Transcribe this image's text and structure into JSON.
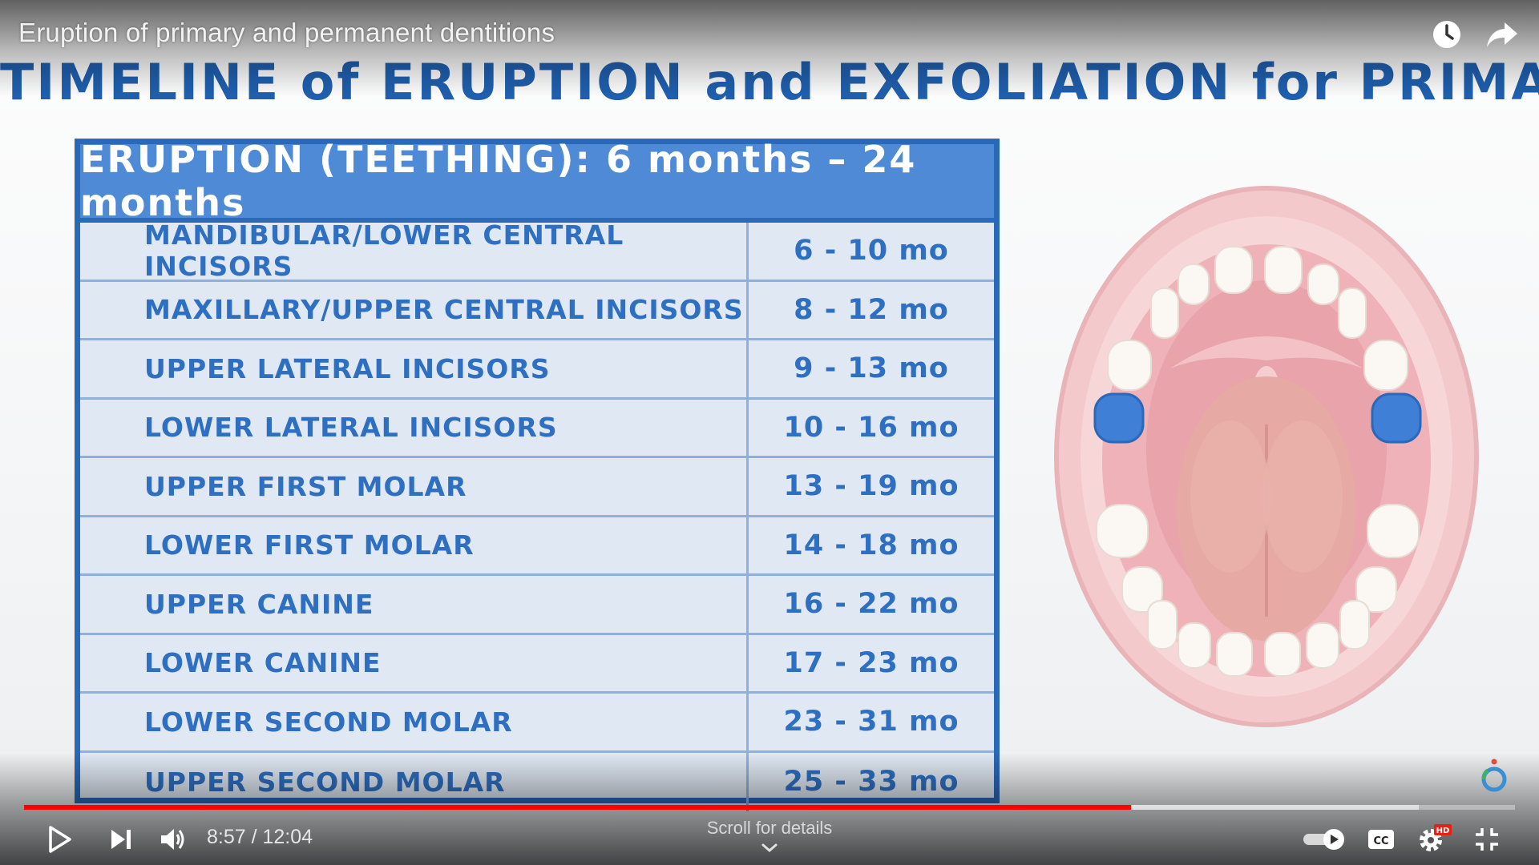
{
  "player": {
    "title": "Eruption of primary and permanent dentitions",
    "time": "8:57 / 12:04",
    "scroll_hint": "Scroll for details",
    "progress_played_fraction": 0.7425,
    "progress_buffered_fraction": 0.9355,
    "hd_badge": "HD",
    "accent_color": "#ff0000"
  },
  "slide": {
    "heading": "TIMELINE of ERUPTION and EXFOLIATION for PRIMARY TEETH",
    "table": {
      "header": "ERUPTION (TEETHING): 6 months – 24 months",
      "rows": [
        {
          "tooth": "MANDIBULAR/LOWER CENTRAL INCISORS",
          "age": "6 - 10 mo"
        },
        {
          "tooth": "MAXILLARY/UPPER CENTRAL INCISORS",
          "age": "8 - 12 mo"
        },
        {
          "tooth": "UPPER LATERAL INCISORS",
          "age": "9 - 13 mo"
        },
        {
          "tooth": "LOWER LATERAL INCISORS",
          "age": "10 - 16 mo"
        },
        {
          "tooth": "UPPER FIRST MOLAR",
          "age": "13 - 19 mo"
        },
        {
          "tooth": "LOWER FIRST MOLAR",
          "age": "14 - 18 mo"
        },
        {
          "tooth": "UPPER CANINE",
          "age": "16 - 22 mo"
        },
        {
          "tooth": "LOWER CANINE",
          "age": "17 - 23 mo"
        },
        {
          "tooth": "LOWER SECOND MOLAR",
          "age": "23 - 31 mo"
        },
        {
          "tooth": "UPPER SECOND MOLAR",
          "age": "25 - 33 mo"
        }
      ]
    },
    "colors": {
      "heading_blue": "#1f5fae",
      "table_border": "#2a68b8",
      "header_fill": "#4f8ad6",
      "highlight_tooth": "#3f7fd6"
    }
  },
  "icons": [
    "watch-later-icon",
    "share-icon",
    "play-icon",
    "next-icon",
    "volume-icon",
    "chevron-down-icon",
    "autoplay-toggle-icon",
    "captions-icon",
    "settings-icon",
    "fullscreen-exit-icon",
    "brand-logo-icon"
  ]
}
